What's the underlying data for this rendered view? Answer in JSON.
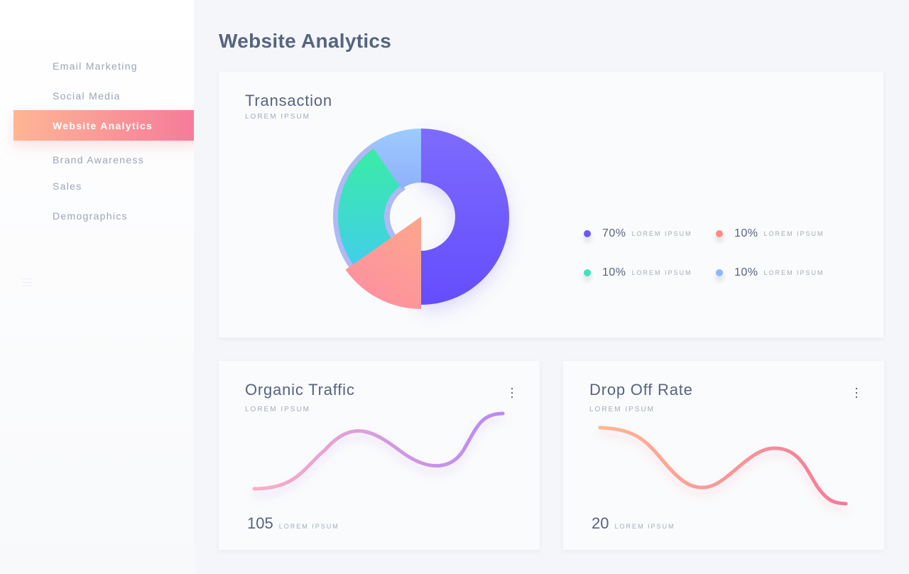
{
  "sidebar": {
    "items": [
      {
        "label": "Email Marketing"
      },
      {
        "label": "Social Media"
      },
      {
        "label": "Website Analytics",
        "active": true
      },
      {
        "label": "Brand Awareness"
      },
      {
        "label": "Sales"
      },
      {
        "label": "Demographics"
      }
    ],
    "menu_icon": "hamburger-icon"
  },
  "page": {
    "title": "Website Analytics"
  },
  "transaction": {
    "title": "Transaction",
    "subtitle": "LOREM IPSUM",
    "legend": [
      {
        "value": "70%",
        "label": "LOREM IPSUM",
        "color": "#6c55fb"
      },
      {
        "value": "10%",
        "label": "LOREM IPSUM",
        "color": "#fe8b8b"
      },
      {
        "value": "10%",
        "label": "LOREM IPSUM",
        "color": "#3de3c0"
      },
      {
        "value": "10%",
        "label": "LOREM IPSUM",
        "color": "#8fb6fe"
      }
    ]
  },
  "organic": {
    "title": "Organic Traffic",
    "subtitle": "LOREM IPSUM",
    "value": "105",
    "value_label": "LOREM IPSUM",
    "colors": [
      "#fdaec2",
      "#b88af5"
    ]
  },
  "dropoff": {
    "title": "Drop Off Rate",
    "subtitle": "LOREM IPSUM",
    "value": "20",
    "value_label": "LOREM IPSUM",
    "colors": [
      "#feb694",
      "#f5799b"
    ]
  }
}
